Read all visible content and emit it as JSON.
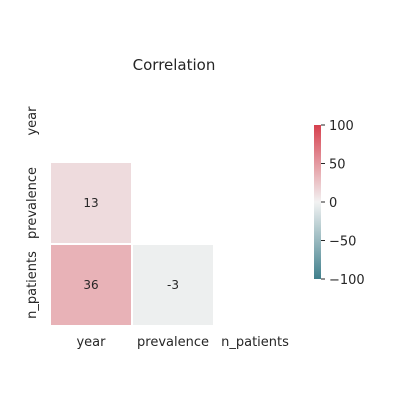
{
  "chart_data": {
    "type": "heatmap",
    "title": "Correlation",
    "x_labels": [
      "year",
      "prevalence",
      "n_patients"
    ],
    "y_labels": [
      "year",
      "prevalence",
      "n_patients"
    ],
    "mask": "upper-triangle",
    "cells": [
      {
        "row": "prevalence",
        "col": "year",
        "value": 13,
        "label": "13"
      },
      {
        "row": "n_patients",
        "col": "year",
        "value": 36,
        "label": "36"
      },
      {
        "row": "n_patients",
        "col": "prevalence",
        "value": -3,
        "label": "-3"
      }
    ],
    "colorbar": {
      "min": -100,
      "max": 100,
      "ticks": [
        100,
        50,
        0,
        -50,
        -100
      ],
      "tick_labels": [
        "100",
        "50",
        "0",
        "−50",
        "−100"
      ],
      "colors": {
        "low": "#3f7f8c",
        "mid": "#f2f2f2",
        "high": "#d6404e"
      }
    }
  }
}
